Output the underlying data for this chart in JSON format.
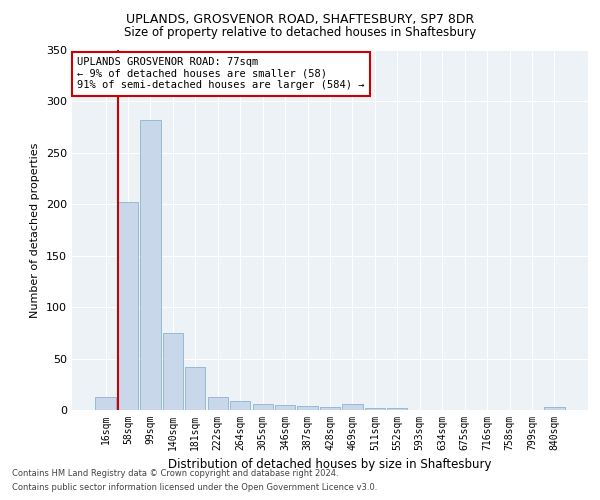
{
  "title1": "UPLANDS, GROSVENOR ROAD, SHAFTESBURY, SP7 8DR",
  "title2": "Size of property relative to detached houses in Shaftesbury",
  "xlabel": "Distribution of detached houses by size in Shaftesbury",
  "ylabel": "Number of detached properties",
  "bin_labels": [
    "16sqm",
    "58sqm",
    "99sqm",
    "140sqm",
    "181sqm",
    "222sqm",
    "264sqm",
    "305sqm",
    "346sqm",
    "387sqm",
    "428sqm",
    "469sqm",
    "511sqm",
    "552sqm",
    "593sqm",
    "634sqm",
    "675sqm",
    "716sqm",
    "758sqm",
    "799sqm",
    "840sqm"
  ],
  "bar_values": [
    13,
    202,
    282,
    75,
    42,
    13,
    9,
    6,
    5,
    4,
    3,
    6,
    2,
    2,
    0,
    0,
    0,
    0,
    0,
    0,
    3
  ],
  "bar_color": "#c8d8ea",
  "bar_edge_color": "#7aaac8",
  "annotation_text_line1": "UPLANDS GROSVENOR ROAD: 77sqm",
  "annotation_text_line2": "← 9% of detached houses are smaller (58)",
  "annotation_text_line3": "91% of semi-detached houses are larger (584) →",
  "annotation_box_color": "#ffffff",
  "annotation_box_edge_color": "#cc0000",
  "red_line_color": "#cc0000",
  "ylim": [
    0,
    350
  ],
  "yticks": [
    0,
    50,
    100,
    150,
    200,
    250,
    300,
    350
  ],
  "footer1": "Contains HM Land Registry data © Crown copyright and database right 2024.",
  "footer2": "Contains public sector information licensed under the Open Government Licence v3.0.",
  "bg_color": "#edf2f7"
}
